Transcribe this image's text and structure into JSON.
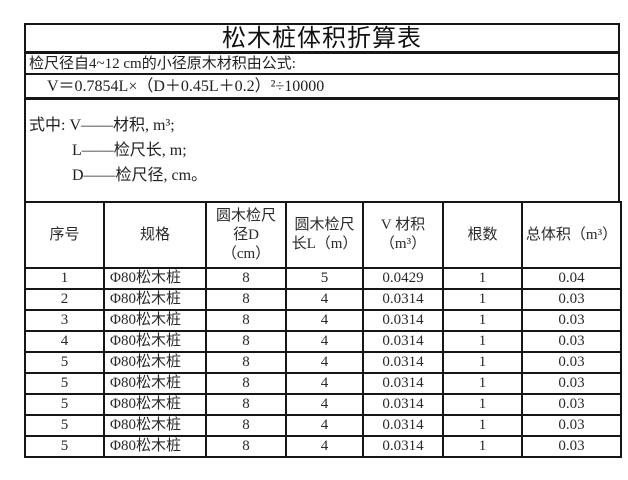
{
  "colors": {
    "background": "#ffffff",
    "border": "#161616",
    "text": "#1f1f1f"
  },
  "title": "松木桩体积折算表",
  "intro_line": "检尺径自4~12 cm的小径原木材积由公式:",
  "formula_line": "V＝0.7854L×（D＋0.45L＋0.2）²÷10000",
  "legend": {
    "line1": "式中: V——材积, m³;",
    "line2": "L——检尺长, m;",
    "line3": "D——检尺径, cm。"
  },
  "table": {
    "columns": [
      {
        "key": "seq",
        "label": "序号"
      },
      {
        "key": "spec",
        "label": "规格"
      },
      {
        "key": "diameter_d",
        "label": "圆木检尺\n径D\n（cm）"
      },
      {
        "key": "length_l",
        "label": "圆木检尺\n长L（m）"
      },
      {
        "key": "volume_v",
        "label": "V 材积\n（m³）"
      },
      {
        "key": "count",
        "label": "根数"
      },
      {
        "key": "total_volume",
        "label": "总体积（m³）"
      }
    ],
    "rows": [
      [
        "1",
        "Φ80松木桩",
        "8",
        "5",
        "0.0429",
        "1",
        "0.04"
      ],
      [
        "2",
        "Φ80松木桩",
        "8",
        "4",
        "0.0314",
        "1",
        "0.03"
      ],
      [
        "3",
        "Φ80松木桩",
        "8",
        "4",
        "0.0314",
        "1",
        "0.03"
      ],
      [
        "4",
        "Φ80松木桩",
        "8",
        "4",
        "0.0314",
        "1",
        "0.03"
      ],
      [
        "5",
        "Φ80松木桩",
        "8",
        "4",
        "0.0314",
        "1",
        "0.03"
      ],
      [
        "5",
        "Φ80松木桩",
        "8",
        "4",
        "0.0314",
        "1",
        "0.03"
      ],
      [
        "5",
        "Φ80松木桩",
        "8",
        "4",
        "0.0314",
        "1",
        "0.03"
      ],
      [
        "5",
        "Φ80松木桩",
        "8",
        "4",
        "0.0314",
        "1",
        "0.03"
      ],
      [
        "5",
        "Φ80松木桩",
        "8",
        "4",
        "0.0314",
        "1",
        "0.03"
      ]
    ]
  }
}
